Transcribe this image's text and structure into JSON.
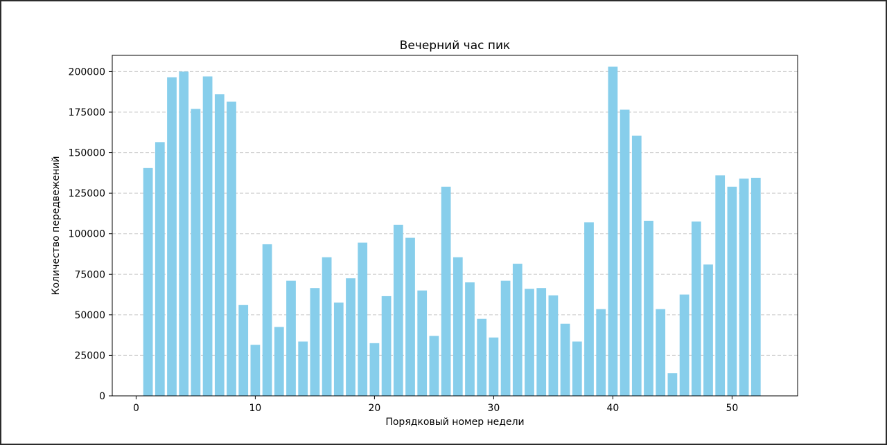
{
  "chart_data": {
    "type": "bar",
    "title": "Вечерний час пик",
    "xlabel": "Порядковый номер недели",
    "ylabel": "Количество передвежений",
    "x": [
      1,
      2,
      3,
      4,
      5,
      6,
      7,
      8,
      9,
      10,
      11,
      12,
      13,
      14,
      15,
      16,
      17,
      18,
      19,
      20,
      21,
      22,
      23,
      24,
      25,
      26,
      27,
      28,
      29,
      30,
      31,
      32,
      33,
      34,
      35,
      36,
      37,
      38,
      39,
      40,
      41,
      42,
      43,
      44,
      45,
      46,
      47,
      48,
      49,
      50,
      51,
      52
    ],
    "values": [
      140500,
      156500,
      196500,
      200000,
      177000,
      197000,
      186000,
      181500,
      56000,
      31500,
      93500,
      42500,
      71000,
      33500,
      66500,
      85500,
      57500,
      72500,
      94500,
      32500,
      61500,
      105500,
      97500,
      65000,
      37000,
      129000,
      85500,
      70000,
      47500,
      36000,
      71000,
      81500,
      66000,
      66500,
      62000,
      44500,
      33500,
      107000,
      53500,
      203000,
      176500,
      160500,
      108000,
      53500,
      14000,
      62500,
      107500,
      81000,
      136000,
      129000,
      134000,
      134500
    ],
    "xlim": [
      -2,
      55.5
    ],
    "ylim": [
      0,
      210000
    ],
    "xticks": [
      0,
      10,
      20,
      30,
      40,
      50
    ],
    "yticks": [
      0,
      25000,
      50000,
      75000,
      100000,
      125000,
      150000,
      175000,
      200000
    ],
    "grid": "y-dashed",
    "bar_color": "#87ceeb",
    "grid_color": "#c8c8c8"
  }
}
